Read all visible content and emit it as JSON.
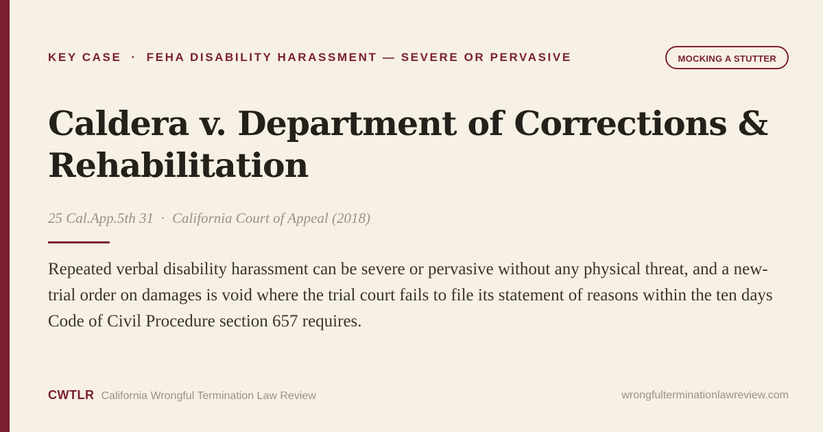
{
  "header": {
    "eyebrow_label": "KEY CASE",
    "eyebrow_separator": "·",
    "eyebrow_topic": "FEHA DISABILITY HARASSMENT — SEVERE OR PERVASIVE",
    "tag": "MOCKING A STUTTER"
  },
  "case": {
    "title": "Caldera v. Department of Corrections & Rehabilitation",
    "reporter": "25 Cal.App.5th 31",
    "separator": "·",
    "court": "California Court of Appeal (2018)",
    "summary": "Repeated verbal disability harassment can be severe or pervasive without any physical threat, and a new-trial order on damages is void where the trial court fails to file its statement of reasons within the ten days Code of Civil Procedure section 657 requires."
  },
  "footer": {
    "brand_short": "CWTLR",
    "brand_name": "California Wrongful Termination Law Review",
    "url": "wrongfulterminationlawreview.com"
  },
  "colors": {
    "background": "#f7f0e4",
    "accent": "#7a2032",
    "title_text": "#24211b",
    "body_text": "#3a342c",
    "muted_text": "#9a9186"
  }
}
